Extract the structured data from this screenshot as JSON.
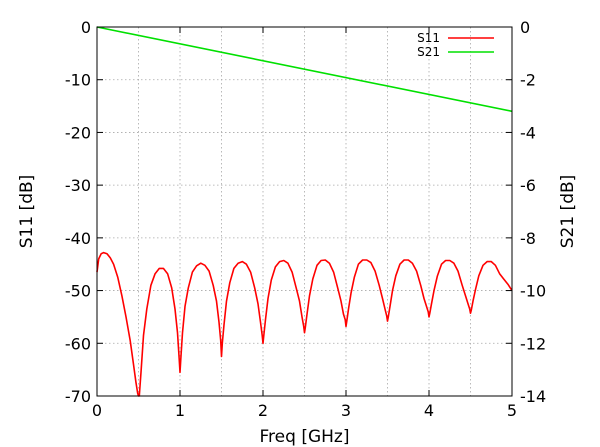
{
  "chart_data": {
    "type": "line",
    "title": "",
    "xlabel": "Freq [GHz]",
    "ylabel_left": "S11 [dB]",
    "ylabel_right": "S21 [dB]",
    "xlim": [
      0,
      5
    ],
    "ylim_left": [
      -70,
      0
    ],
    "ylim_right": [
      -14,
      0
    ],
    "x_ticks": [
      "0",
      "1",
      "2",
      "3",
      "4",
      "5"
    ],
    "y_ticks_left": [
      "0",
      "-10",
      "-20",
      "-30",
      "-40",
      "-50",
      "-60",
      "-70"
    ],
    "y_ticks_right": [
      "0",
      "-2",
      "-4",
      "-6",
      "-8",
      "-10",
      "-12",
      "-14"
    ],
    "grid": true,
    "legend_position": "top-right",
    "series": [
      {
        "name": "S11",
        "axis": "left",
        "color": "#ff0000",
        "x": [
          0,
          0.02,
          0.05,
          0.08,
          0.12,
          0.16,
          0.2,
          0.25,
          0.3,
          0.35,
          0.4,
          0.44,
          0.47,
          0.49,
          0.5,
          0.51,
          0.53,
          0.56,
          0.6,
          0.65,
          0.7,
          0.75,
          0.8,
          0.85,
          0.9,
          0.94,
          0.97,
          0.99,
          1.0,
          1.01,
          1.03,
          1.06,
          1.1,
          1.15,
          1.2,
          1.25,
          1.3,
          1.35,
          1.4,
          1.44,
          1.47,
          1.49,
          1.5,
          1.51,
          1.53,
          1.56,
          1.6,
          1.65,
          1.7,
          1.75,
          1.8,
          1.85,
          1.9,
          1.94,
          1.97,
          1.99,
          2.0,
          2.01,
          2.03,
          2.06,
          2.1,
          2.15,
          2.2,
          2.25,
          2.3,
          2.35,
          2.4,
          2.44,
          2.47,
          2.49,
          2.5,
          2.51,
          2.53,
          2.56,
          2.6,
          2.65,
          2.7,
          2.75,
          2.8,
          2.85,
          2.9,
          2.94,
          2.97,
          2.99,
          3.0,
          3.01,
          3.03,
          3.06,
          3.1,
          3.15,
          3.2,
          3.25,
          3.3,
          3.35,
          3.4,
          3.44,
          3.47,
          3.49,
          3.5,
          3.51,
          3.53,
          3.56,
          3.6,
          3.65,
          3.7,
          3.75,
          3.8,
          3.85,
          3.9,
          3.94,
          3.97,
          3.99,
          4.0,
          4.01,
          4.03,
          4.06,
          4.1,
          4.15,
          4.2,
          4.25,
          4.3,
          4.35,
          4.4,
          4.44,
          4.47,
          4.49,
          4.5,
          4.51,
          4.53,
          4.56,
          4.6,
          4.65,
          4.7,
          4.75,
          4.8,
          4.85,
          4.9,
          4.95,
          5.0
        ],
        "y": [
          -46.5,
          -44.0,
          -43.0,
          -42.8,
          -43.0,
          -43.8,
          -45.0,
          -47.5,
          -51.0,
          -55.0,
          -59.5,
          -64.0,
          -67.5,
          -69.5,
          -72.0,
          -70.0,
          -65.5,
          -58.5,
          -53.5,
          -49.0,
          -46.8,
          -45.8,
          -45.8,
          -46.8,
          -49.5,
          -53.5,
          -58.0,
          -63.0,
          -65.5,
          -63.0,
          -58.0,
          -53.0,
          -49.5,
          -46.5,
          -45.3,
          -44.8,
          -45.2,
          -46.3,
          -49.0,
          -52.0,
          -56.0,
          -59.5,
          -62.5,
          -60.0,
          -56.5,
          -52.0,
          -48.5,
          -45.8,
          -44.8,
          -44.5,
          -45.0,
          -46.5,
          -49.5,
          -52.5,
          -56.0,
          -58.5,
          -60.0,
          -58.5,
          -55.5,
          -51.5,
          -48.0,
          -45.5,
          -44.5,
          -44.3,
          -44.8,
          -46.5,
          -49.5,
          -52.0,
          -55.0,
          -56.8,
          -58.0,
          -57.0,
          -54.5,
          -51.0,
          -47.8,
          -45.2,
          -44.3,
          -44.2,
          -44.8,
          -46.5,
          -49.5,
          -52.0,
          -54.5,
          -55.5,
          -56.8,
          -55.8,
          -53.5,
          -50.5,
          -47.5,
          -45.0,
          -44.2,
          -44.2,
          -44.7,
          -46.3,
          -49.0,
          -51.5,
          -53.5,
          -54.8,
          -55.8,
          -55.0,
          -53.0,
          -50.0,
          -47.2,
          -45.0,
          -44.2,
          -44.2,
          -44.8,
          -46.3,
          -49.0,
          -51.5,
          -53.0,
          -54.0,
          -55.0,
          -54.3,
          -52.5,
          -50.0,
          -47.3,
          -45.0,
          -44.3,
          -44.3,
          -44.8,
          -46.3,
          -49.0,
          -51.0,
          -52.5,
          -53.5,
          -54.3,
          -53.7,
          -52.0,
          -49.8,
          -47.2,
          -45.2,
          -44.5,
          -44.5,
          -45.2,
          -46.8,
          -47.8,
          -48.8,
          -50.0
        ]
      },
      {
        "name": "S21",
        "axis": "right",
        "color": "#00e000",
        "x": [
          0,
          5
        ],
        "y": [
          0,
          -3.2
        ]
      }
    ]
  }
}
